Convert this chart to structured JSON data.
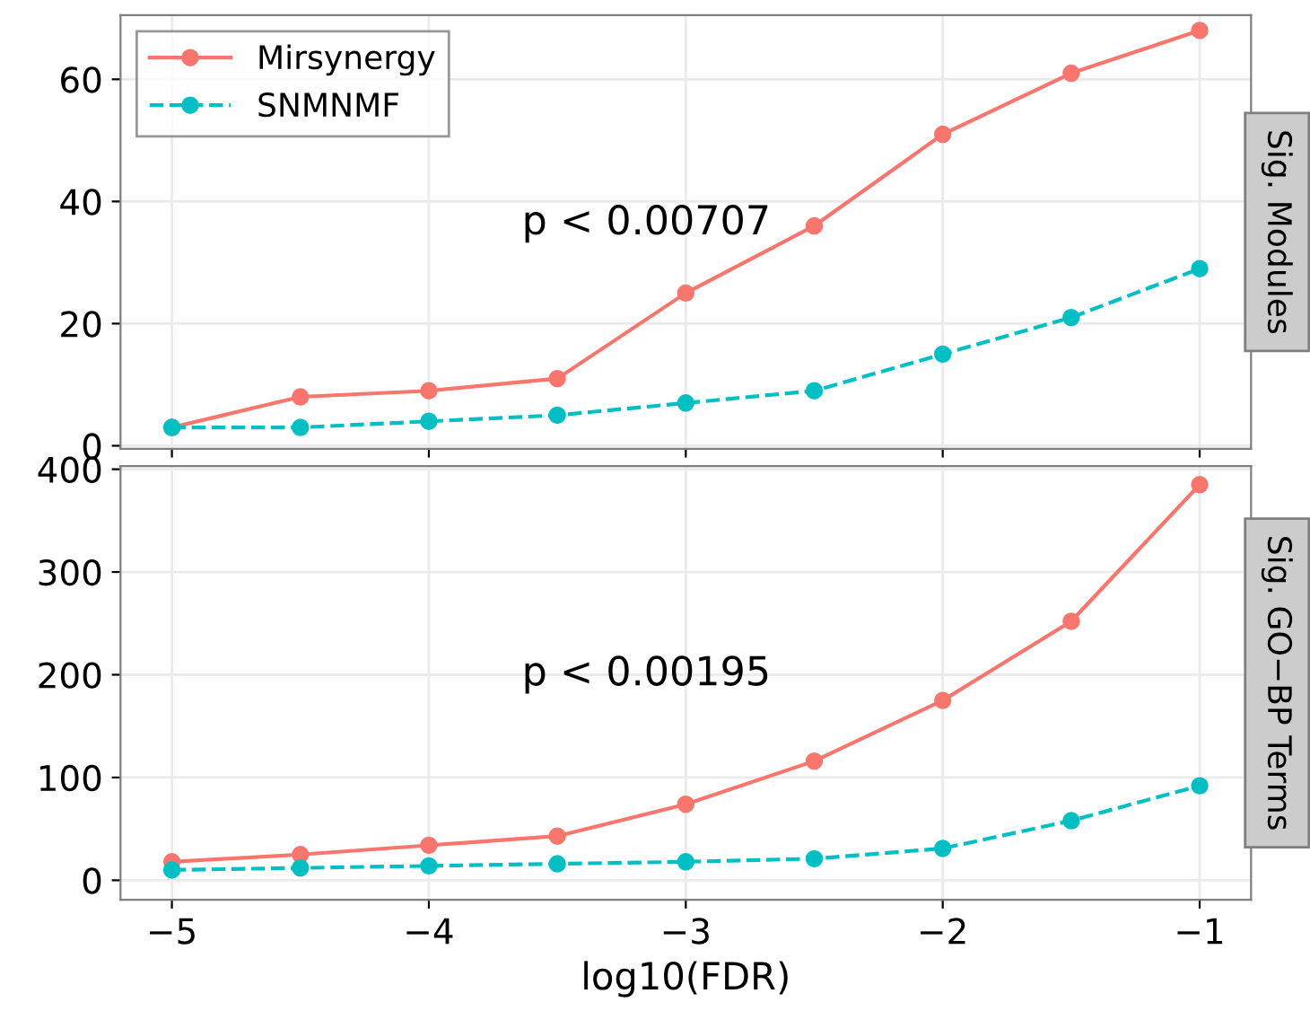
{
  "chart_data": [
    {
      "type": "line",
      "title": "Sig. Modules",
      "x": [
        -5,
        -4.5,
        -4,
        -3.5,
        -3,
        -2.5,
        -2,
        -1.5,
        -1
      ],
      "series": [
        {
          "name": "Mirsynergy",
          "color": "#f8766d",
          "line_style": "solid",
          "values": [
            3,
            8,
            9,
            11,
            25,
            36,
            51,
            61,
            68
          ]
        },
        {
          "name": "SNMNMF",
          "color": "#00bfc4",
          "line_style": "dashed",
          "values": [
            3,
            3,
            4,
            5,
            7,
            9,
            15,
            21,
            29
          ]
        }
      ],
      "xlim": [
        -5.2,
        -0.8
      ],
      "xticks": [
        -5,
        -4,
        -3,
        -2,
        -1
      ],
      "ylim": [
        -0.5,
        70.5
      ],
      "yticks": [
        0,
        20,
        40,
        60
      ],
      "tick_labels": "y",
      "grid": true,
      "legend": "top left",
      "marker": "circle",
      "annotations": [
        "p < 0.00707"
      ]
    },
    {
      "type": "line",
      "title": "Sig. GO−BP Terms",
      "xlabel": "log10(FDR)",
      "x": [
        -5,
        -4.5,
        -4,
        -3.5,
        -3,
        -2.5,
        -2,
        -1.5,
        -1
      ],
      "series": [
        {
          "color": "#f8766d",
          "line_style": "solid",
          "values": [
            18,
            25,
            34,
            43,
            74,
            116,
            175,
            252,
            385
          ]
        },
        {
          "color": "#00bfc4",
          "line_style": "dashed",
          "values": [
            10,
            12,
            14,
            16,
            18,
            21,
            31,
            58,
            92
          ]
        }
      ],
      "xlim": [
        -5.2,
        -0.8
      ],
      "xticks": [
        {
          "value": -5,
          "label": "−5"
        },
        {
          "value": -4,
          "label": "−4"
        },
        {
          "value": -3,
          "label": "−3"
        },
        {
          "value": -2,
          "label": "−2"
        },
        {
          "value": -1,
          "label": "−1"
        }
      ],
      "ylim": [
        -19,
        403
      ],
      "yticks": [
        0,
        100,
        200,
        300,
        400
      ],
      "grid": true,
      "marker": "circle",
      "annotations": [
        "p < 0.00195"
      ]
    }
  ]
}
